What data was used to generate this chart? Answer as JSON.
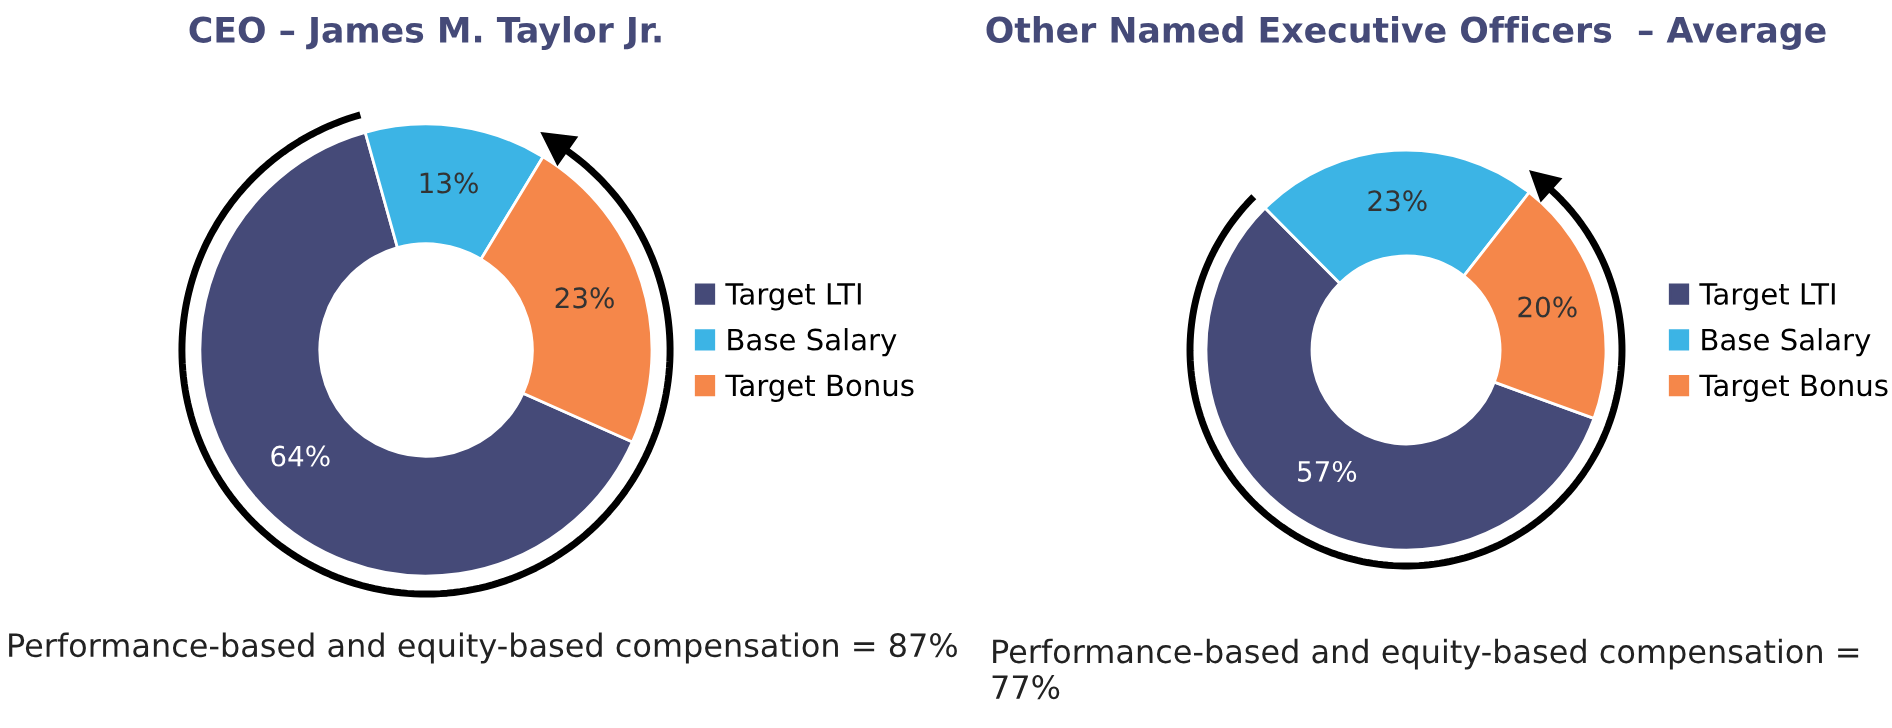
{
  "chart_data": [
    {
      "type": "donut",
      "title": "CEO – James M. Taylor Jr.",
      "categories": [
        "Target LTI",
        "Base Salary",
        "Target Bonus"
      ],
      "values": [
        64,
        13,
        23
      ],
      "colors": [
        "#454a78",
        "#3cb4e5",
        "#f5874a"
      ],
      "value_labels": [
        "64%",
        "13%",
        "23%"
      ],
      "legend": "right",
      "annotations": [
        "Performance-based and equity-based compensation = 87%"
      ]
    },
    {
      "type": "donut",
      "title": "Other Named Executive Officers  – Average",
      "categories": [
        "Target LTI",
        "Base Salary",
        "Target Bonus"
      ],
      "values": [
        57,
        23,
        20
      ],
      "colors": [
        "#454a78",
        "#3cb4e5",
        "#f5874a"
      ],
      "value_labels": [
        "57%",
        "23%",
        "20%"
      ],
      "legend": "right",
      "annotations": [
        "Performance-based and equity-based compensation = 77%"
      ]
    }
  ]
}
